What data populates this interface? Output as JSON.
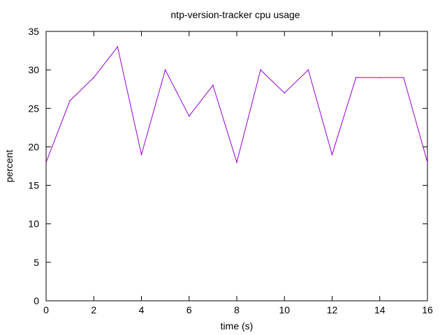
{
  "chart_data": {
    "type": "line",
    "title": "ntp-version-tracker cpu usage",
    "xlabel": "time (s)",
    "ylabel": "percent",
    "xlim": [
      0,
      16
    ],
    "ylim": [
      0,
      35
    ],
    "x_ticks": [
      0,
      2,
      4,
      6,
      8,
      10,
      12,
      14,
      16
    ],
    "y_ticks": [
      0,
      5,
      10,
      15,
      20,
      25,
      30,
      35
    ],
    "grid": false,
    "series": [
      {
        "color": "#9400d3",
        "x": [
          0,
          1,
          2,
          3,
          4,
          5,
          6,
          7,
          8,
          9,
          10,
          11,
          12,
          13,
          14,
          15,
          16
        ],
        "y": [
          18,
          26,
          29,
          33,
          19,
          30,
          24,
          28,
          18,
          30,
          27,
          30,
          19,
          29,
          29,
          29,
          18
        ]
      }
    ]
  }
}
